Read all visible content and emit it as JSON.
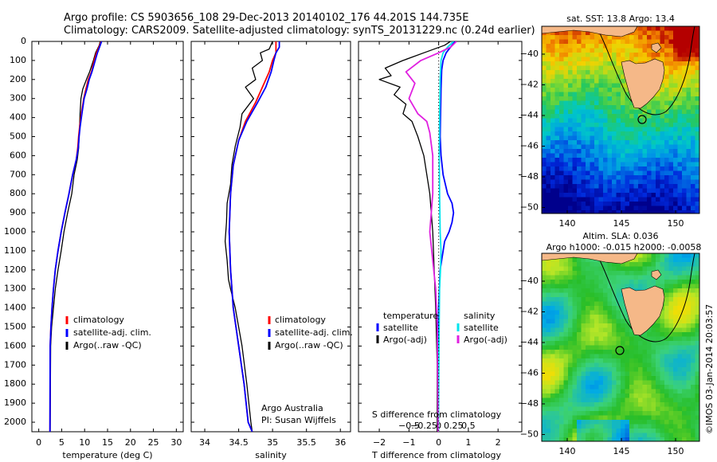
{
  "header": {
    "line1": "Argo profile: CS 5903656_108 29-Dec-2013 20140102_176 44.201S 144.735E",
    "line2": "Climatology: CARS2009. Satellite-adjusted climatology: synTS_20131229.nc (0.24d earlier)"
  },
  "colors": {
    "climatology": "#ff0000",
    "satellite": "#0000ff",
    "argo": "#000000",
    "salinity_satellite": "#00e5ee",
    "salinity_argo": "#e020e0",
    "land": "#f5b888"
  },
  "legend": {
    "climatology": "climatology",
    "satellite": "satellite-adj. clim.",
    "argo": "Argo(..raw -QC)"
  },
  "diff_legend": {
    "temperature_head": "temperature",
    "salinity_head": "salinity",
    "satellite": "satellite",
    "argo": "Argo(-adj)"
  },
  "annotation": {
    "org": "Argo Australia",
    "pi": "PI: Susan Wijffels"
  },
  "map_sst": {
    "title": "sat. SST: 13.8  Argo: 13.4",
    "yticks": [
      "-40",
      "-42",
      "-44",
      "-46",
      "-48",
      "-50"
    ],
    "xticks": [
      "140",
      "145",
      "150"
    ]
  },
  "map_sla": {
    "title1": "Altim. SLA: 0.036",
    "title2": "Argo h1000: -0.015  h2000: -0.0058",
    "yticks": [
      "-40",
      "-42",
      "-44",
      "-46",
      "-48",
      "-50"
    ],
    "xticks": [
      "140",
      "145",
      "150"
    ]
  },
  "side_text": "©IMOS 03-Jan-2014 20:03:57",
  "chart_data": [
    {
      "type": "line",
      "xlabel": "temperature (deg C)",
      "ylim": [
        0,
        2050
      ],
      "xlim": [
        -1.5,
        31.5
      ],
      "yticks": [
        0,
        100,
        200,
        300,
        400,
        500,
        600,
        700,
        800,
        900,
        1000,
        1100,
        1200,
        1300,
        1400,
        1500,
        1600,
        1700,
        1800,
        1900,
        2000
      ],
      "xticks": [
        0,
        5,
        10,
        15,
        20,
        25,
        30
      ],
      "series": [
        {
          "name": "Argo(..raw -QC)",
          "x": [
            13.4,
            13.2,
            12.4,
            11.9,
            11.1,
            10.4,
            9.6,
            9.2,
            9.0,
            8.9,
            8.8,
            8.7,
            8.4,
            7.7,
            7.2,
            6.3,
            5.5,
            4.9,
            4.2,
            3.6,
            3.2,
            2.8,
            2.6,
            2.55,
            2.5
          ],
          "y": [
            0,
            20,
            60,
            100,
            160,
            200,
            250,
            300,
            380,
            450,
            500,
            560,
            620,
            700,
            800,
            900,
            1000,
            1100,
            1200,
            1300,
            1400,
            1500,
            1600,
            1800,
            2050
          ]
        },
        {
          "name": "climatology",
          "x": [
            13.6,
            13.3,
            12.6,
            12.1,
            11.5,
            10.8,
            10.3,
            9.8,
            9.3,
            8.9,
            8.7,
            8.5,
            8.2,
            7.4,
            6.6,
            5.7,
            4.9,
            4.2,
            3.6,
            3.2,
            2.9,
            2.65,
            2.5,
            2.45
          ],
          "y": [
            0,
            20,
            60,
            100,
            160,
            200,
            250,
            300,
            380,
            450,
            500,
            560,
            620,
            700,
            800,
            900,
            1000,
            1100,
            1200,
            1300,
            1400,
            1500,
            1600,
            2050
          ]
        },
        {
          "name": "satellite-adj. clim.",
          "x": [
            13.7,
            13.4,
            12.8,
            12.3,
            11.6,
            11.0,
            10.5,
            9.9,
            9.4,
            9.0,
            8.8,
            8.6,
            8.2,
            7.4,
            6.6,
            5.7,
            4.9,
            4.2,
            3.6,
            3.2,
            2.9,
            2.65,
            2.5,
            2.45
          ],
          "y": [
            0,
            20,
            60,
            100,
            160,
            200,
            250,
            300,
            380,
            450,
            500,
            560,
            620,
            700,
            800,
            900,
            1000,
            1100,
            1200,
            1300,
            1400,
            1500,
            1600,
            2050
          ]
        }
      ]
    },
    {
      "type": "line",
      "xlabel": "salinity",
      "ylim": [
        0,
        2050
      ],
      "xlim": [
        33.8,
        36.15
      ],
      "xticks": [
        34,
        34.5,
        35,
        35.5,
        36
      ],
      "series": [
        {
          "name": "Argo(..raw -QC)",
          "x": [
            35.0,
            34.95,
            34.82,
            34.85,
            34.7,
            34.75,
            34.6,
            34.72,
            34.55,
            34.52,
            34.45,
            34.4,
            34.38,
            34.33,
            34.32,
            34.3,
            34.33,
            34.35,
            34.38,
            34.45,
            34.55,
            34.62,
            34.68,
            34.7
          ],
          "y": [
            0,
            40,
            60,
            100,
            140,
            200,
            240,
            300,
            380,
            450,
            550,
            650,
            750,
            850,
            950,
            1050,
            1150,
            1250,
            1300,
            1400,
            1600,
            1800,
            2000,
            2050
          ]
        },
        {
          "name": "climatology",
          "x": [
            35.05,
            35.05,
            35.0,
            34.95,
            34.85,
            34.75,
            34.6,
            34.5,
            34.42,
            34.38,
            34.36,
            34.38,
            34.42,
            34.5,
            34.58,
            34.64,
            34.7
          ],
          "y": [
            0,
            60,
            100,
            160,
            240,
            320,
            420,
            520,
            650,
            800,
            1000,
            1200,
            1400,
            1600,
            1800,
            2000,
            2050
          ]
        },
        {
          "name": "satellite-adj. clim.",
          "x": [
            35.1,
            35.1,
            35.05,
            35.02,
            34.98,
            34.9,
            34.78,
            34.62,
            34.5,
            34.42,
            34.38,
            34.36,
            34.38,
            34.42,
            34.5,
            34.58,
            34.64,
            34.7
          ],
          "y": [
            0,
            30,
            60,
            100,
            160,
            240,
            320,
            420,
            520,
            650,
            800,
            1000,
            1200,
            1400,
            1600,
            1800,
            2000,
            2050
          ]
        }
      ]
    },
    {
      "type": "line",
      "xlabel": "T difference from climatology",
      "top_label": "S difference from climatology",
      "ylim": [
        0,
        2050
      ],
      "xlim": [
        -2.7,
        2.8
      ],
      "xticks": [
        -2,
        -1,
        0,
        1,
        2
      ],
      "s_ticks": [
        "-0.5",
        "-0.25",
        "0",
        "0.25",
        "0.5"
      ],
      "series": [
        {
          "name": "satellite",
          "x": [
            0.55,
            0.4,
            0.25,
            0.15,
            0.1,
            0.08,
            0.06,
            0.05,
            0.08,
            0.15,
            0.3,
            0.45,
            0.5,
            0.45,
            0.35,
            0.2,
            0.05,
            0.0,
            -0.02,
            -0.03
          ],
          "y": [
            0,
            30,
            60,
            100,
            150,
            250,
            400,
            500,
            600,
            700,
            800,
            850,
            900,
            950,
            1000,
            1050,
            1200,
            1400,
            1700,
            2050
          ]
        },
        {
          "name": "Argo(-adj)",
          "x": [
            0.4,
            0.2,
            -0.5,
            -1.2,
            -1.8,
            -1.6,
            -2.0,
            -1.3,
            -1.5,
            -1.1,
            -1.2,
            -0.9,
            -0.7,
            -0.5,
            -0.3,
            -0.2,
            -0.15,
            -0.1,
            -0.05,
            -0.05
          ],
          "y": [
            0,
            20,
            60,
            100,
            140,
            180,
            200,
            240,
            280,
            330,
            380,
            420,
            500,
            600,
            800,
            1000,
            1200,
            1400,
            1700,
            2050
          ]
        },
        {
          "name": "salinity satellite",
          "x": [
            0.5,
            0.3,
            0.15,
            0.08,
            0.05,
            0.03,
            0.02,
            0.03,
            0.05,
            0.08,
            0.06,
            0.03,
            0.01,
            -0.01
          ],
          "y": [
            0,
            30,
            60,
            100,
            200,
            400,
            600,
            800,
            1000,
            1100,
            1200,
            1300,
            1600,
            2050
          ]
        },
        {
          "name": "salinity Argo(-adj)",
          "x": [
            0.6,
            0.4,
            0.0,
            -0.6,
            -1.1,
            -0.8,
            -1.0,
            -0.7,
            -0.4,
            -0.3,
            -0.2,
            -0.2,
            -0.3,
            -0.2,
            -0.1,
            -0.05,
            -0.02
          ],
          "y": [
            0,
            30,
            60,
            100,
            160,
            220,
            300,
            380,
            420,
            480,
            600,
            800,
            1000,
            1150,
            1300,
            1500,
            2050
          ]
        }
      ]
    }
  ]
}
